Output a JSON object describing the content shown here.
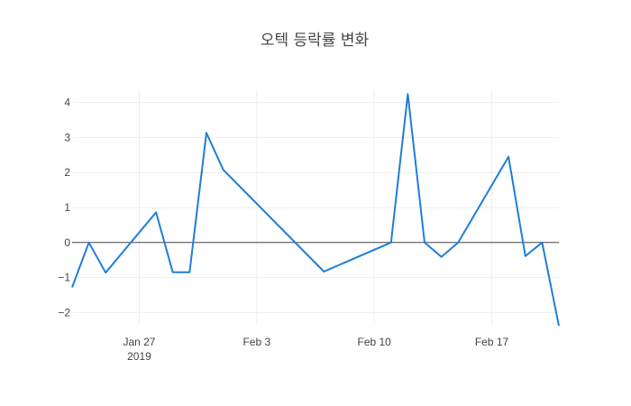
{
  "chart_data": {
    "type": "line",
    "title": "오텍 등락률 변화",
    "xlabel": "",
    "ylabel": "",
    "x_range": [
      "2019-01-23",
      "2019-02-21"
    ],
    "ylim": [
      -2.35,
      4.35
    ],
    "grid": true,
    "x_ticks": [
      {
        "date": "2019-01-27",
        "label": "Jan 27",
        "sublabel": "2019"
      },
      {
        "date": "2019-02-03",
        "label": "Feb 3",
        "sublabel": ""
      },
      {
        "date": "2019-02-10",
        "label": "Feb 10",
        "sublabel": ""
      },
      {
        "date": "2019-02-17",
        "label": "Feb 17",
        "sublabel": ""
      }
    ],
    "y_ticks": [
      {
        "value": -2,
        "label": "−2"
      },
      {
        "value": -1,
        "label": "−1"
      },
      {
        "value": 0,
        "label": "0"
      },
      {
        "value": 1,
        "label": "1"
      },
      {
        "value": 2,
        "label": "2"
      },
      {
        "value": 3,
        "label": "3"
      },
      {
        "value": 4,
        "label": "4"
      }
    ],
    "series": [
      {
        "color": "#1f7ed8",
        "x": [
          "2019-01-23",
          "2019-01-24",
          "2019-01-25",
          "2019-01-28",
          "2019-01-29",
          "2019-01-30",
          "2019-01-31",
          "2019-02-01",
          "2019-02-07",
          "2019-02-11",
          "2019-02-12",
          "2019-02-13",
          "2019-02-14",
          "2019-02-15",
          "2019-02-18",
          "2019-02-19",
          "2019-02-20",
          "2019-02-21"
        ],
        "y": [
          -1.28,
          0.0,
          -0.86,
          0.86,
          -0.85,
          -0.85,
          3.13,
          2.08,
          -0.83,
          0.0,
          4.24,
          0.0,
          -0.41,
          0.0,
          2.45,
          -0.39,
          0.0,
          -2.38
        ]
      }
    ]
  }
}
